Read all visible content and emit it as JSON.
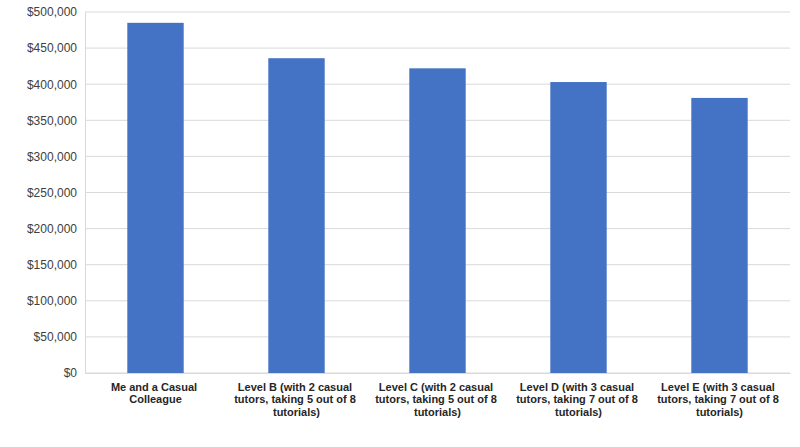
{
  "chart_data": {
    "type": "bar",
    "categories": [
      "Me and a Casual Colleague",
      "Level B (with 2 casual tutors, taking 5 out of 8 tutorials)",
      "Level C (with 2 casual tutors, taking 5 out of 8 tutorials)",
      "Level D (with 3 casual tutors, taking 7 out of 8 tutorials)",
      "Level E (with 3 casual tutors, taking 7 out of 8 tutorials)"
    ],
    "values": [
      485000,
      436000,
      422000,
      403000,
      381000
    ],
    "color": "#4472c4",
    "ylim": [
      0,
      500000
    ],
    "yticks": [
      {
        "value": 0,
        "label": "$0"
      },
      {
        "value": 50000,
        "label": "$50,000"
      },
      {
        "value": 100000,
        "label": "$100,000"
      },
      {
        "value": 150000,
        "label": "$150,000"
      },
      {
        "value": 200000,
        "label": "$200,000"
      },
      {
        "value": 250000,
        "label": "$250,000"
      },
      {
        "value": 300000,
        "label": "$300,000"
      },
      {
        "value": 350000,
        "label": "$350,000"
      },
      {
        "value": 400000,
        "label": "$400,000"
      },
      {
        "value": 450000,
        "label": "$450,000"
      },
      {
        "value": 500000,
        "label": "$500,000"
      }
    ],
    "grid": true
  }
}
